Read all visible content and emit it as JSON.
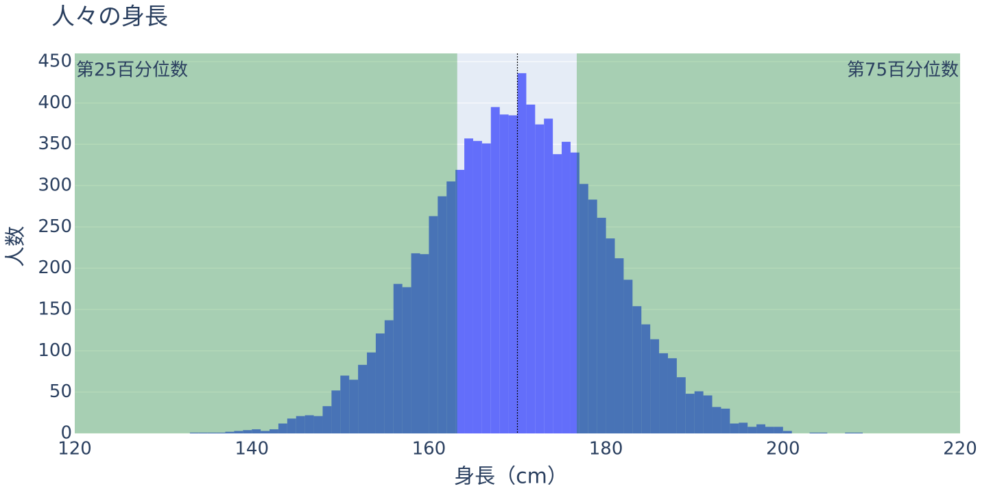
{
  "chart_data": {
    "type": "histogram",
    "title": "人々の身長",
    "x_label": "身長（cm）",
    "y_label": "人数",
    "bins": [
      133,
      134,
      135,
      136,
      137,
      138,
      139,
      140,
      141,
      142,
      143,
      144,
      145,
      146,
      147,
      148,
      149,
      150,
      151,
      152,
      153,
      154,
      155,
      156,
      157,
      158,
      159,
      160,
      161,
      162,
      163,
      164,
      165,
      166,
      167,
      168,
      169,
      170,
      171,
      172,
      173,
      174,
      175,
      176,
      177,
      178,
      179,
      180,
      181,
      182,
      183,
      184,
      185,
      186,
      187,
      188,
      189,
      190,
      191,
      192,
      193,
      194,
      195,
      196,
      197,
      198,
      199,
      200,
      201,
      202,
      203,
      204,
      205,
      206,
      207,
      208,
      209
    ],
    "values": [
      1,
      1,
      1,
      1,
      2,
      3,
      4,
      5,
      3,
      5,
      12,
      18,
      21,
      22,
      21,
      33,
      52,
      70,
      65,
      83,
      98,
      121,
      137,
      181,
      177,
      218,
      217,
      263,
      287,
      305,
      319,
      357,
      354,
      351,
      395,
      386,
      385,
      436,
      398,
      374,
      381,
      338,
      353,
      340,
      302,
      283,
      261,
      236,
      212,
      186,
      154,
      132,
      114,
      97,
      91,
      68,
      48,
      51,
      46,
      32,
      30,
      12,
      13,
      8,
      11,
      8,
      8,
      3,
      0,
      0,
      1,
      1,
      0,
      0,
      1,
      1
    ],
    "color": "#636efa",
    "percentile_lines": [
      {
        "name": "第25百分位数",
        "value": 163.2
      },
      {
        "name": "第75百分位数",
        "value": 176.7
      }
    ],
    "median": 170.0,
    "shade_color": "#008000",
    "xlim": [
      120,
      220
    ],
    "xticks": [
      120,
      140,
      160,
      180,
      200,
      220
    ],
    "ylim": [
      0,
      450
    ],
    "yticks": [
      0,
      50,
      100,
      150,
      200,
      250,
      300,
      350,
      400,
      450
    ],
    "grid": true
  }
}
